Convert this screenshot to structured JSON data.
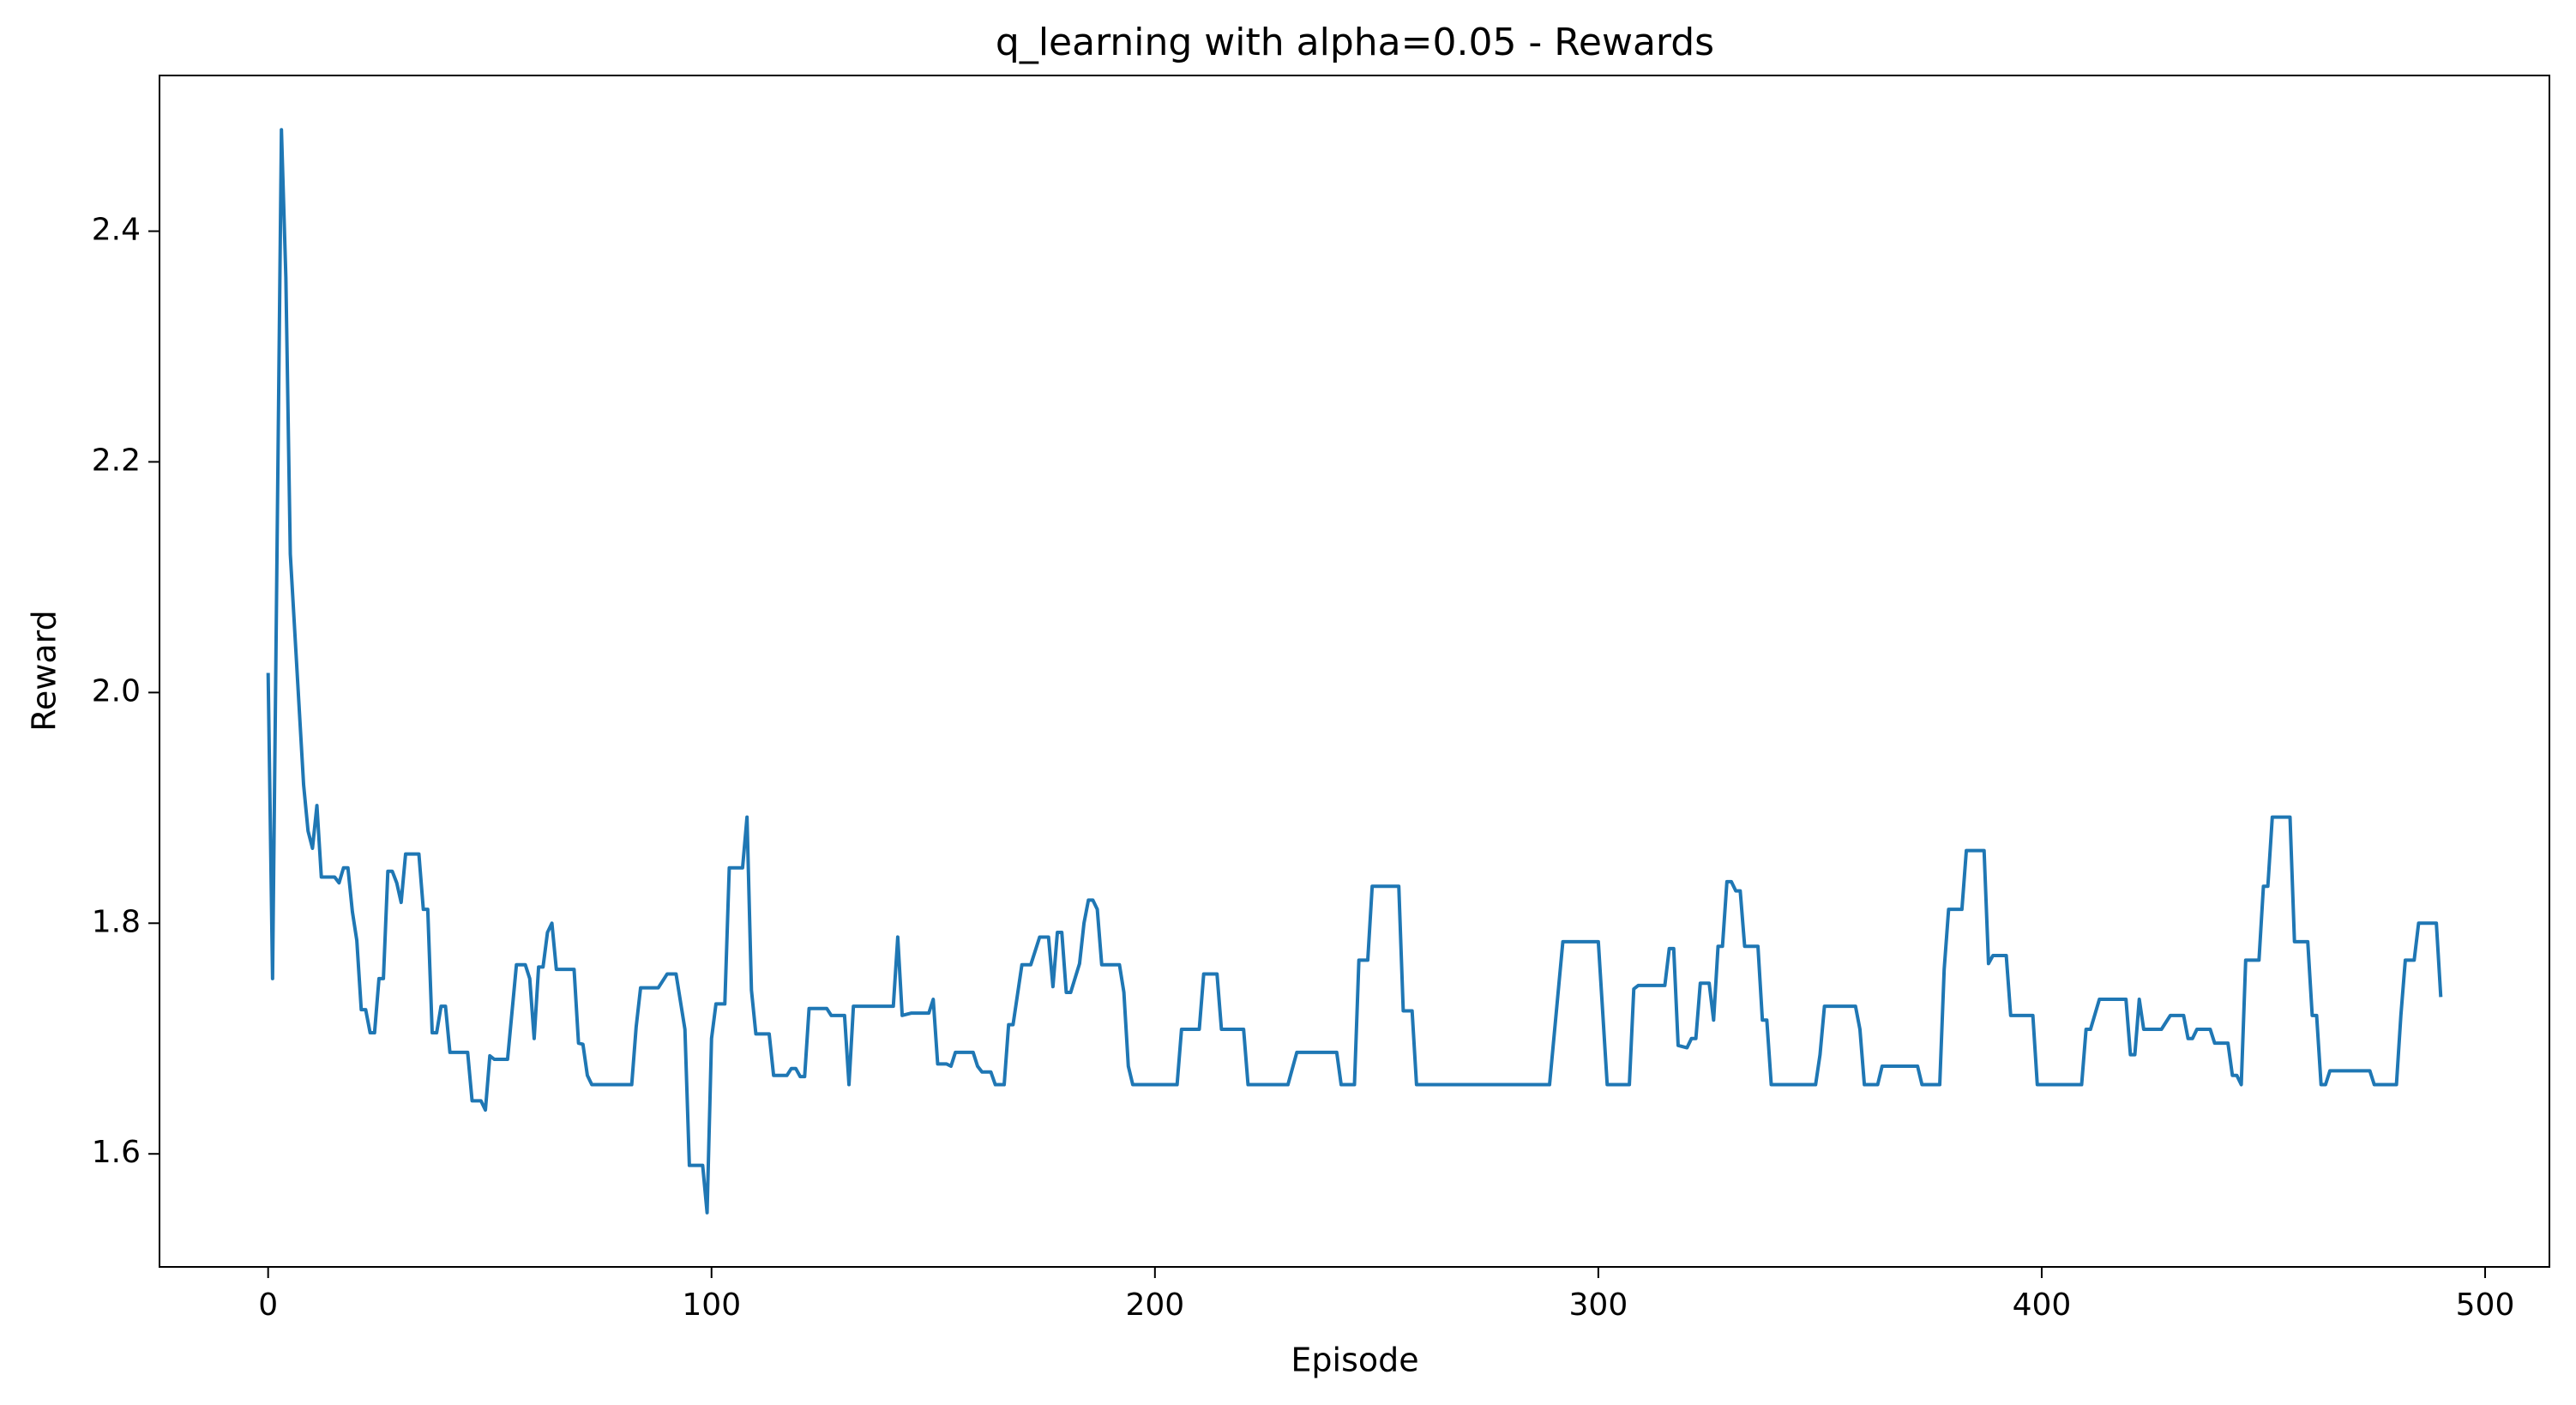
{
  "chart_data": {
    "type": "line",
    "title": "q_learning with alpha=0.05 - Rewards",
    "x_label": "Episode",
    "y_label": "Reward",
    "color": "#1f77b4",
    "x": [
      0,
      1,
      3,
      4,
      5,
      8,
      9,
      10,
      11,
      12,
      15,
      16,
      17,
      18,
      19,
      20,
      21,
      22,
      23,
      24,
      25,
      26,
      27,
      28,
      29,
      30,
      31,
      34,
      35,
      36,
      37,
      38,
      39,
      40,
      41,
      45,
      46,
      48,
      49,
      50,
      51,
      54,
      56,
      58,
      59,
      60,
      61,
      62,
      63,
      64,
      65,
      69,
      70,
      71,
      72,
      73,
      82,
      83,
      84,
      88,
      90,
      92,
      94,
      95,
      98,
      99,
      100,
      101,
      103,
      104,
      107,
      108,
      109,
      110,
      113,
      114,
      117,
      118,
      119,
      120,
      121,
      122,
      126,
      127,
      130,
      131,
      132,
      141,
      142,
      143,
      145,
      149,
      150,
      151,
      153,
      154,
      155,
      159,
      160,
      161,
      163,
      164,
      166,
      167,
      168,
      170,
      172,
      174,
      176,
      177,
      178,
      179,
      180,
      181,
      183,
      184,
      185,
      186,
      187,
      188,
      192,
      193,
      194,
      195,
      205,
      206,
      210,
      211,
      214,
      215,
      220,
      221,
      230,
      232,
      241,
      242,
      245,
      246,
      248,
      249,
      255,
      256,
      258,
      259,
      289,
      292,
      300,
      302,
      307,
      308,
      309,
      315,
      316,
      317,
      318,
      320,
      321,
      322,
      323,
      325,
      326,
      327,
      328,
      329,
      330,
      331,
      332,
      333,
      336,
      337,
      338,
      339,
      349,
      350,
      351,
      358,
      359,
      360,
      363,
      364,
      372,
      373,
      377,
      378,
      379,
      382,
      383,
      387,
      388,
      389,
      392,
      393,
      398,
      399,
      409,
      410,
      411,
      413,
      419,
      420,
      421,
      422,
      423,
      427,
      429,
      432,
      433,
      434,
      435,
      438,
      439,
      442,
      443,
      444,
      445,
      446,
      449,
      450,
      451,
      452,
      456,
      457,
      460,
      461,
      462,
      463,
      464,
      465,
      474,
      475,
      480,
      481,
      482,
      484,
      485,
      489,
      490
    ],
    "values": [
      2.017,
      1.752,
      2.488,
      2.36,
      2.12,
      1.92,
      1.88,
      1.865,
      1.902,
      1.84,
      1.84,
      1.835,
      1.848,
      1.848,
      1.81,
      1.785,
      1.725,
      1.725,
      1.705,
      1.705,
      1.752,
      1.752,
      1.845,
      1.845,
      1.835,
      1.818,
      1.86,
      1.86,
      1.812,
      1.812,
      1.705,
      1.705,
      1.728,
      1.728,
      1.688,
      1.688,
      1.646,
      1.646,
      1.638,
      1.685,
      1.682,
      1.682,
      1.764,
      1.764,
      1.752,
      1.7,
      1.762,
      1.762,
      1.792,
      1.8,
      1.76,
      1.76,
      1.696,
      1.695,
      1.668,
      1.66,
      1.66,
      1.71,
      1.744,
      1.744,
      1.756,
      1.756,
      1.708,
      1.59,
      1.59,
      1.549,
      1.7,
      1.73,
      1.73,
      1.848,
      1.848,
      1.892,
      1.742,
      1.704,
      1.704,
      1.668,
      1.668,
      1.674,
      1.674,
      1.667,
      1.667,
      1.726,
      1.726,
      1.72,
      1.72,
      1.66,
      1.728,
      1.728,
      1.788,
      1.72,
      1.722,
      1.722,
      1.734,
      1.678,
      1.678,
      1.676,
      1.688,
      1.688,
      1.676,
      1.671,
      1.671,
      1.66,
      1.66,
      1.712,
      1.712,
      1.764,
      1.764,
      1.788,
      1.788,
      1.745,
      1.792,
      1.792,
      1.74,
      1.74,
      1.765,
      1.8,
      1.82,
      1.82,
      1.812,
      1.764,
      1.764,
      1.74,
      1.676,
      1.66,
      1.66,
      1.708,
      1.708,
      1.756,
      1.756,
      1.708,
      1.708,
      1.66,
      1.66,
      1.688,
      1.688,
      1.66,
      1.66,
      1.768,
      1.768,
      1.832,
      1.832,
      1.724,
      1.724,
      1.66,
      1.66,
      1.784,
      1.784,
      1.66,
      1.66,
      1.743,
      1.746,
      1.746,
      1.778,
      1.778,
      1.694,
      1.692,
      1.7,
      1.7,
      1.748,
      1.748,
      1.716,
      1.78,
      1.78,
      1.836,
      1.836,
      1.828,
      1.828,
      1.78,
      1.78,
      1.716,
      1.716,
      1.66,
      1.66,
      1.686,
      1.728,
      1.728,
      1.708,
      1.66,
      1.66,
      1.676,
      1.676,
      1.66,
      1.66,
      1.76,
      1.812,
      1.812,
      1.863,
      1.863,
      1.765,
      1.772,
      1.772,
      1.72,
      1.72,
      1.66,
      1.66,
      1.708,
      1.708,
      1.734,
      1.734,
      1.686,
      1.686,
      1.734,
      1.708,
      1.708,
      1.72,
      1.72,
      1.7,
      1.7,
      1.708,
      1.708,
      1.696,
      1.696,
      1.668,
      1.668,
      1.66,
      1.768,
      1.768,
      1.832,
      1.832,
      1.892,
      1.892,
      1.784,
      1.784,
      1.72,
      1.72,
      1.66,
      1.66,
      1.672,
      1.672,
      1.66,
      1.66,
      1.72,
      1.768,
      1.768,
      1.8,
      1.8,
      1.736
    ],
    "xlim": [
      -24.5,
      514.5
    ],
    "ylim": [
      1.502,
      2.535
    ],
    "xticks": [
      0,
      100,
      200,
      300,
      400,
      500
    ],
    "yticks": [
      1.6,
      1.8,
      {
        "value": 2,
        "label": "2.0"
      },
      2.2,
      2.4
    ]
  }
}
